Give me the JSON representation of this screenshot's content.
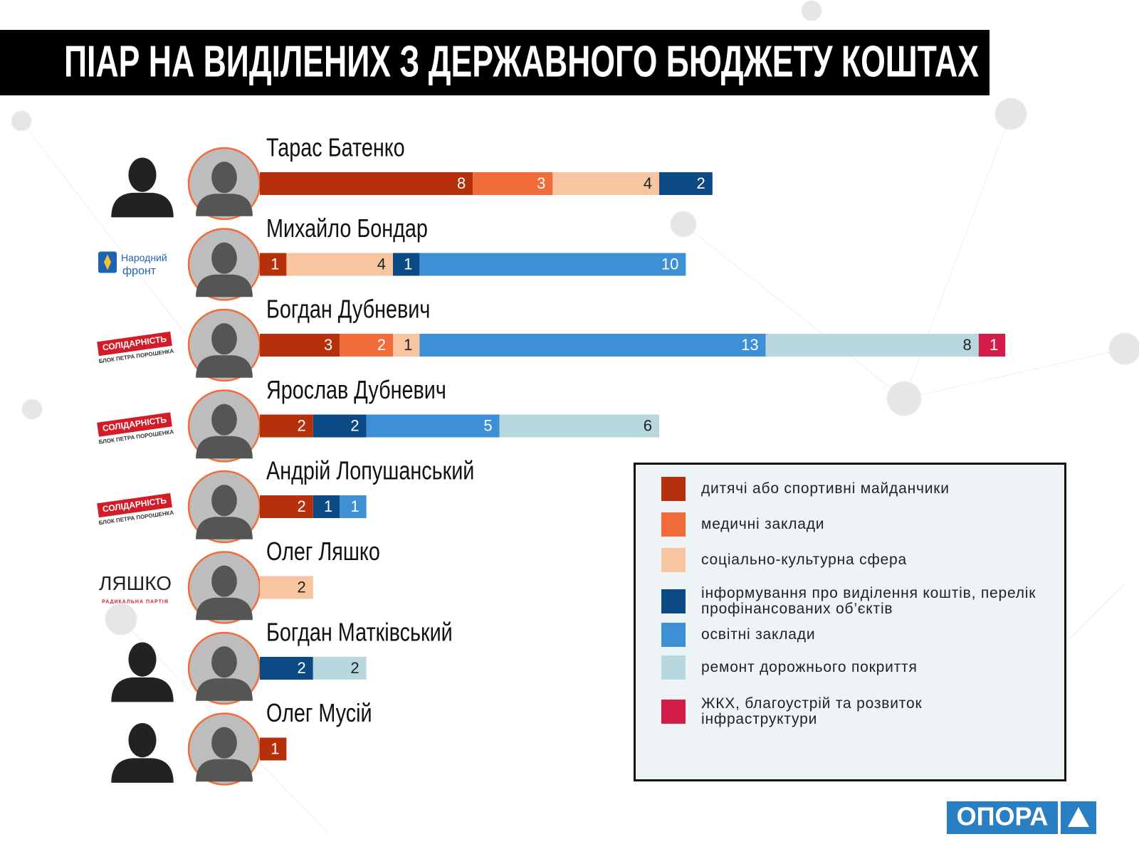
{
  "chart_data": {
    "type": "stacked-hbar",
    "title": "ПІАР НА ВИДІЛЕНИХ З ДЕРЖАВНОГО БЮДЖЕТУ КОШТАХ",
    "categories": [
      "Тарас Батенко",
      "Михайло Бондар",
      "Богдан Дубневич",
      "Ярослав Дубневич",
      "Андрій Лопушанський",
      "Олег Ляшко",
      "Богдан Матківський",
      "Олег Мусій"
    ],
    "series": [
      {
        "name": "дитячі або спортивні майданчики",
        "color": "#b5300b",
        "values": [
          8,
          1,
          3,
          2,
          2,
          null,
          null,
          1
        ]
      },
      {
        "name": "медичні заклади",
        "color": "#f26c3a",
        "values": [
          3,
          null,
          2,
          null,
          null,
          null,
          null,
          null
        ]
      },
      {
        "name": "соціально-культурна сфера",
        "color": "#f7c5a0",
        "values": [
          4,
          4,
          1,
          null,
          null,
          2,
          null,
          null
        ]
      },
      {
        "name": "інформування про виділення коштів, перелік профінансованих об’єктів",
        "color": "#0c4a85",
        "values": [
          2,
          1,
          null,
          2,
          1,
          null,
          2,
          null
        ]
      },
      {
        "name": "освітні заклади",
        "color": "#3d8fd6",
        "values": [
          null,
          10,
          13,
          5,
          1,
          null,
          null,
          null
        ]
      },
      {
        "name": "ремонт дорожнього покриття",
        "color": "#b7d8de",
        "values": [
          null,
          null,
          8,
          6,
          null,
          null,
          2,
          null
        ]
      },
      {
        "name": "ЖКХ, благоустрій та розвиток інфраструктури",
        "color": "#d41c48",
        "values": [
          null,
          null,
          1,
          null,
          null,
          null,
          null,
          null
        ]
      }
    ]
  },
  "parties": [
    null,
    {
      "style": "nf",
      "lines": [
        "Народний",
        "фронт"
      ]
    },
    {
      "style": "sol",
      "lines": [
        "СОЛІДАРНІСТЬ",
        "БЛОК ПЕТРА ПОРОШЕНКА"
      ]
    },
    {
      "style": "sol",
      "lines": [
        "СОЛІДАРНІСТЬ",
        "БЛОК ПЕТРА ПОРОШЕНКА"
      ]
    },
    {
      "style": "sol",
      "lines": [
        "СОЛІДАРНІСТЬ",
        "БЛОК ПЕТРА ПОРОШЕНКА"
      ]
    },
    {
      "style": "rp",
      "lines": [
        "ЛЯШКО",
        "РАДИКАЛЬНА ПАРТІЯ"
      ]
    },
    null,
    null
  ],
  "brand": "ОПОРА"
}
